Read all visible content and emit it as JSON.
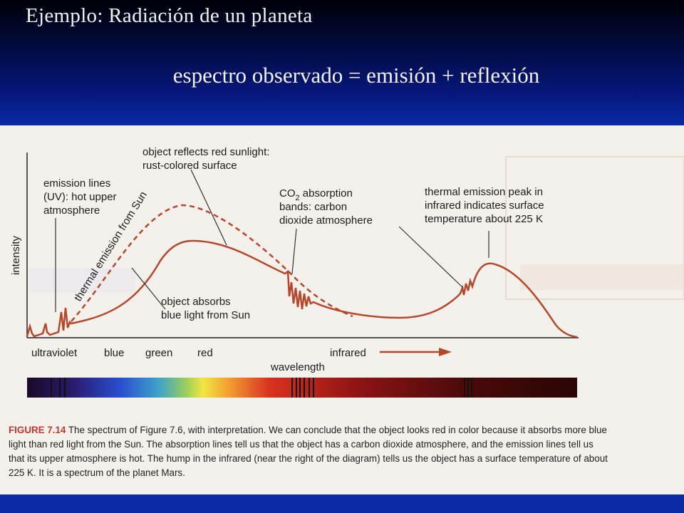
{
  "slide": {
    "title": "Ejemplo: Radiación de un planeta",
    "subtitle": "espectro observado = emisión + reflexión"
  },
  "figure": {
    "y_axis_label": "intensity",
    "x_axis_label": "wavelength",
    "x_regions": [
      "ultraviolet",
      "blue",
      "green",
      "red",
      "infrared"
    ],
    "annotations": {
      "emission_lines": [
        "emission lines",
        "(UV): hot upper",
        "atmosphere"
      ],
      "reflects": [
        "object reflects red sunlight:",
        "rust-colored surface"
      ],
      "co2_prefix": "CO",
      "co2_sub": "2",
      "co2_suffix": " absorption",
      "co2_lines": [
        "bands: carbon",
        "dioxide atmosphere"
      ],
      "thermal_peak": [
        "thermal emission peak in",
        "infrared indicates surface",
        "temperature about 225 K"
      ],
      "thermal_sun": "thermal emission from Sun",
      "absorbs": [
        "object absorbs",
        "blue light from Sun"
      ]
    },
    "caption": {
      "figure_label": "FIGURE 7.14",
      "line1": " The spectrum of Figure 7.6, with interpretation. We can conclude that the object looks red in color because it absorbs more blue",
      "line2": "light than red light from the Sun. The absorption lines tell us that the object has a carbon dioxide atmosphere, and the emission lines tell us",
      "line3": "that its upper atmosphere is hot. The hump in the infrared (near the right of the diagram) tells us the object has a surface temperature of about",
      "line4": "225 K. It is a spectrum of the planet Mars."
    },
    "colors": {
      "spectrum_line": "#b5472a",
      "arrow": "#b5472a"
    }
  }
}
